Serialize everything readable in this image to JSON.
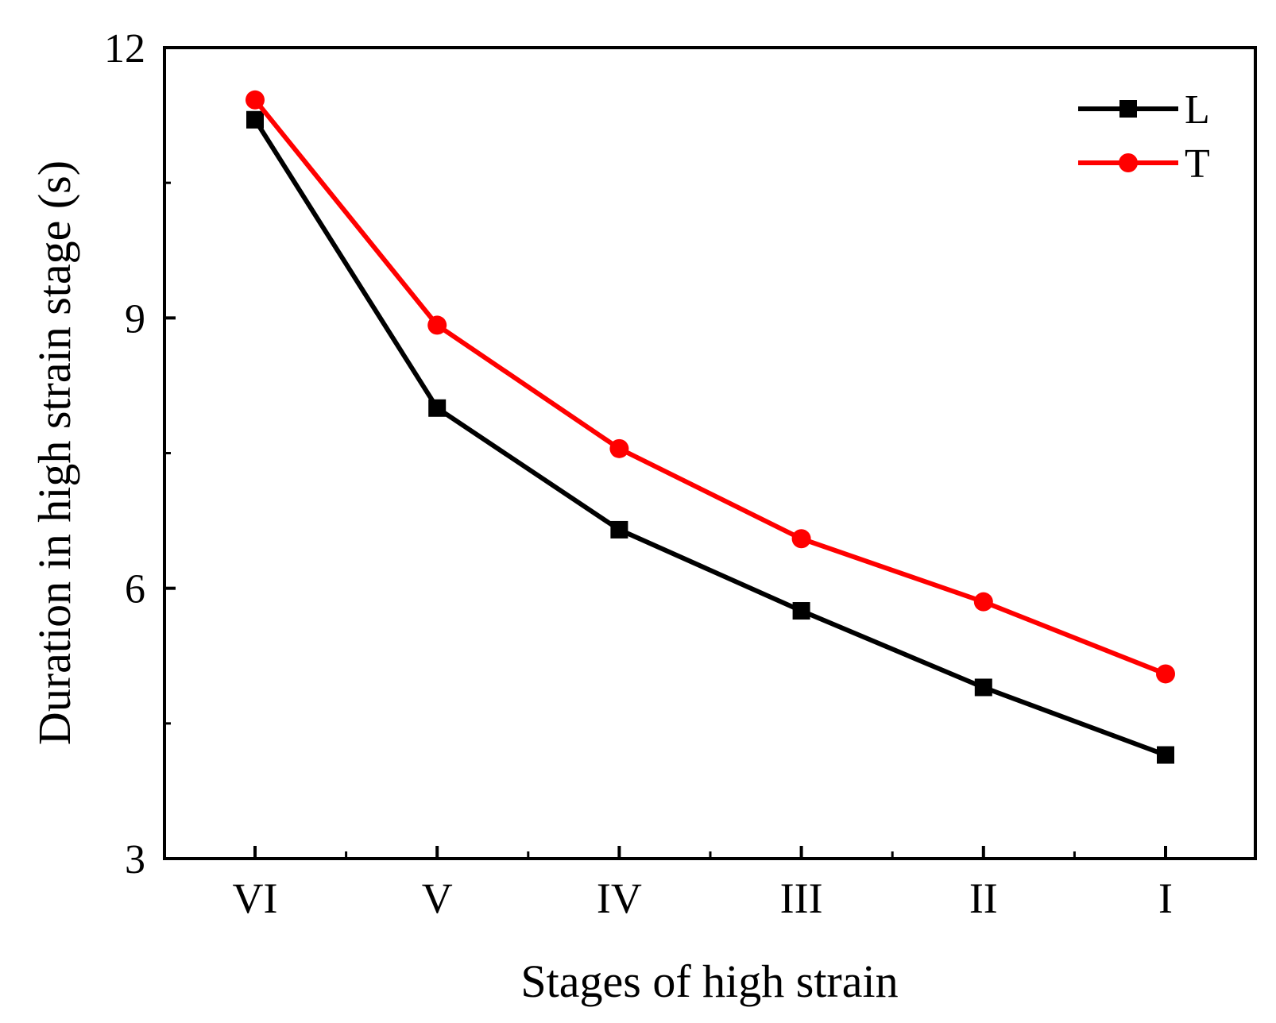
{
  "chart_data": {
    "type": "line",
    "title": "",
    "xlabel": "Stages of high strain",
    "ylabel": "Duration in high strain stage (s)",
    "categories": [
      "VI",
      "V",
      "IV",
      "III",
      "II",
      "I"
    ],
    "ylim": [
      3,
      12
    ],
    "yticks": [
      "3",
      "6",
      "9",
      "12"
    ],
    "legend_position": "top-right",
    "series": [
      {
        "name": "L",
        "marker": "square",
        "color": "#000000",
        "values": [
          11.2,
          8.0,
          6.65,
          5.75,
          4.9,
          4.15
        ]
      },
      {
        "name": "T",
        "marker": "circle",
        "color": "#ff0000",
        "values": [
          11.42,
          8.92,
          7.55,
          6.55,
          5.85,
          5.05
        ]
      }
    ]
  }
}
